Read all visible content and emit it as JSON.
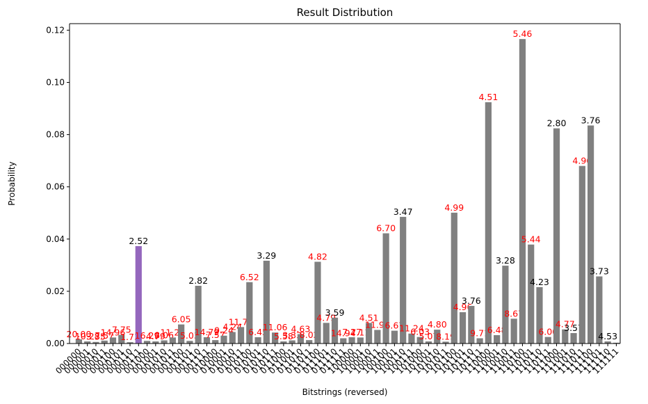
{
  "chart_data": {
    "type": "bar",
    "title": "Result Distribution",
    "xlabel": "Bitstrings (reversed)",
    "ylabel": "Probability",
    "ylim": [
      0,
      0.1225
    ],
    "yticks": [
      "0.00",
      "0.02",
      "0.04",
      "0.06",
      "0.08",
      "0.10",
      "0.12"
    ],
    "yticks_values": [
      0,
      0.02,
      0.04,
      0.06,
      0.08,
      0.1,
      0.12
    ],
    "grid": false,
    "colors": {
      "default": "#808080",
      "highlight": "#9467bd",
      "label_red": "#ff0000",
      "label_black": "#000000"
    },
    "highlight_index": 7,
    "categories": [
      "000000",
      "000001",
      "000010",
      "000011",
      "000100",
      "000101",
      "000110",
      "000111",
      "001000",
      "001001",
      "001010",
      "001011",
      "001100",
      "001101",
      "001110",
      "001111",
      "010000",
      "010001",
      "010010",
      "010011",
      "010100",
      "010101",
      "010110",
      "010111",
      "011000",
      "011001",
      "011010",
      "011011",
      "011100",
      "011101",
      "011110",
      "011111",
      "100000",
      "100001",
      "100010",
      "100011",
      "100100",
      "100101",
      "100110",
      "100111",
      "101000",
      "101001",
      "101010",
      "101011",
      "101100",
      "101101",
      "101110",
      "101111",
      "110000",
      "110001",
      "110010",
      "110011",
      "110100",
      "110101",
      "110110",
      "110111",
      "111000",
      "111001",
      "111010",
      "111011",
      "111100",
      "111101",
      "111110",
      "111111"
    ],
    "values": [
      0.0016,
      0.0008,
      0.0006,
      0.0011,
      0.0023,
      0.0033,
      0.0005,
      0.0373,
      0.001,
      0.0008,
      0.0012,
      0.0023,
      0.0073,
      0.001,
      0.0221,
      0.0024,
      0.0013,
      0.003,
      0.0044,
      0.0063,
      0.0235,
      0.0024,
      0.0317,
      0.0042,
      0.0008,
      0.0012,
      0.0036,
      0.0013,
      0.0313,
      0.0079,
      0.0099,
      0.002,
      0.0024,
      0.0023,
      0.0079,
      0.0052,
      0.0422,
      0.0049,
      0.0485,
      0.0038,
      0.0025,
      0.0008,
      0.0053,
      0.0007,
      0.0501,
      0.012,
      0.0144,
      0.002,
      0.0924,
      0.0032,
      0.0298,
      0.0095,
      0.1166,
      0.0379,
      0.0216,
      0.0025,
      0.0824,
      0.0054,
      0.004,
      0.068,
      0.0835,
      0.0257,
      0.0008,
      0.0003
    ],
    "labels": [
      "20.00",
      "10.28",
      "3.35",
      "7.57",
      "14.96",
      "7.75",
      "1.73",
      "2.52",
      "16.29",
      "4.79",
      "8.06",
      "11.26",
      "6.05",
      "5.03",
      "2.82",
      "14.79",
      "7.57",
      "9.24",
      "4.24",
      "11.72",
      "6.52",
      "6.45",
      "3.29",
      "11.06",
      "5.58",
      "3.33",
      "4.63",
      "8.02",
      "4.82",
      "4.79",
      "3.59",
      "14.94",
      "7.27",
      "7.11",
      "4.51",
      "11.96",
      "6.70",
      "6.67",
      "3.47",
      "11.24",
      "6.03",
      "5.07",
      "4.80",
      "8.19",
      "4.99",
      "4.96",
      "3.76",
      "9.71",
      "4.51",
      "6.48",
      "3.28",
      "8.67",
      "5.46",
      "5.44",
      "4.23",
      "6.00",
      "2.80",
      "4.77",
      "3.57",
      "4.96",
      "3.76",
      "3.73",
      "4.53",
      ""
    ],
    "label_colors": [
      "red",
      "red",
      "red",
      "red",
      "red",
      "red",
      "red",
      "black",
      "red",
      "red",
      "red",
      "red",
      "red",
      "red",
      "black",
      "red",
      "red",
      "red",
      "red",
      "red",
      "red",
      "red",
      "black",
      "red",
      "red",
      "red",
      "red",
      "red",
      "red",
      "red",
      "black",
      "red",
      "red",
      "red",
      "red",
      "red",
      "red",
      "red",
      "black",
      "red",
      "red",
      "red",
      "red",
      "red",
      "red",
      "red",
      "black",
      "red",
      "red",
      "red",
      "black",
      "red",
      "red",
      "red",
      "black",
      "red",
      "black",
      "red",
      "black",
      "red",
      "black",
      "black",
      "black",
      "black"
    ]
  }
}
